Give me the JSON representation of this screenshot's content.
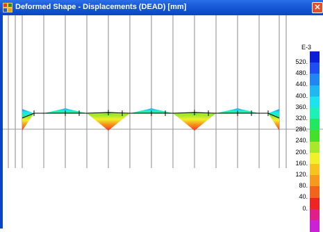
{
  "window": {
    "title": "Deformed Shape - Displacements (DEAD)  [mm]",
    "close_glyph": "✕",
    "app_icon": "grid-app-icon",
    "close_icon": "close-icon",
    "title_bar_color": "#1859d6"
  },
  "legend": {
    "exponent": "E-3",
    "labels": [
      "520.",
      "480.",
      "440.",
      "400.",
      "360.",
      "320.",
      "280.",
      "240.",
      "200.",
      "160.",
      "120.",
      "80.",
      "40.",
      "0."
    ],
    "colors": [
      "#0a1fd6",
      "#1f4ef0",
      "#1f86f2",
      "#20b8f0",
      "#1de3ec",
      "#1ff0b4",
      "#23e85f",
      "#44e02a",
      "#a8e82a",
      "#f2f02a",
      "#f6c41e",
      "#f59a1c",
      "#f2641e",
      "#ec2424",
      "#e0208a",
      "#cc22d6"
    ]
  }
}
